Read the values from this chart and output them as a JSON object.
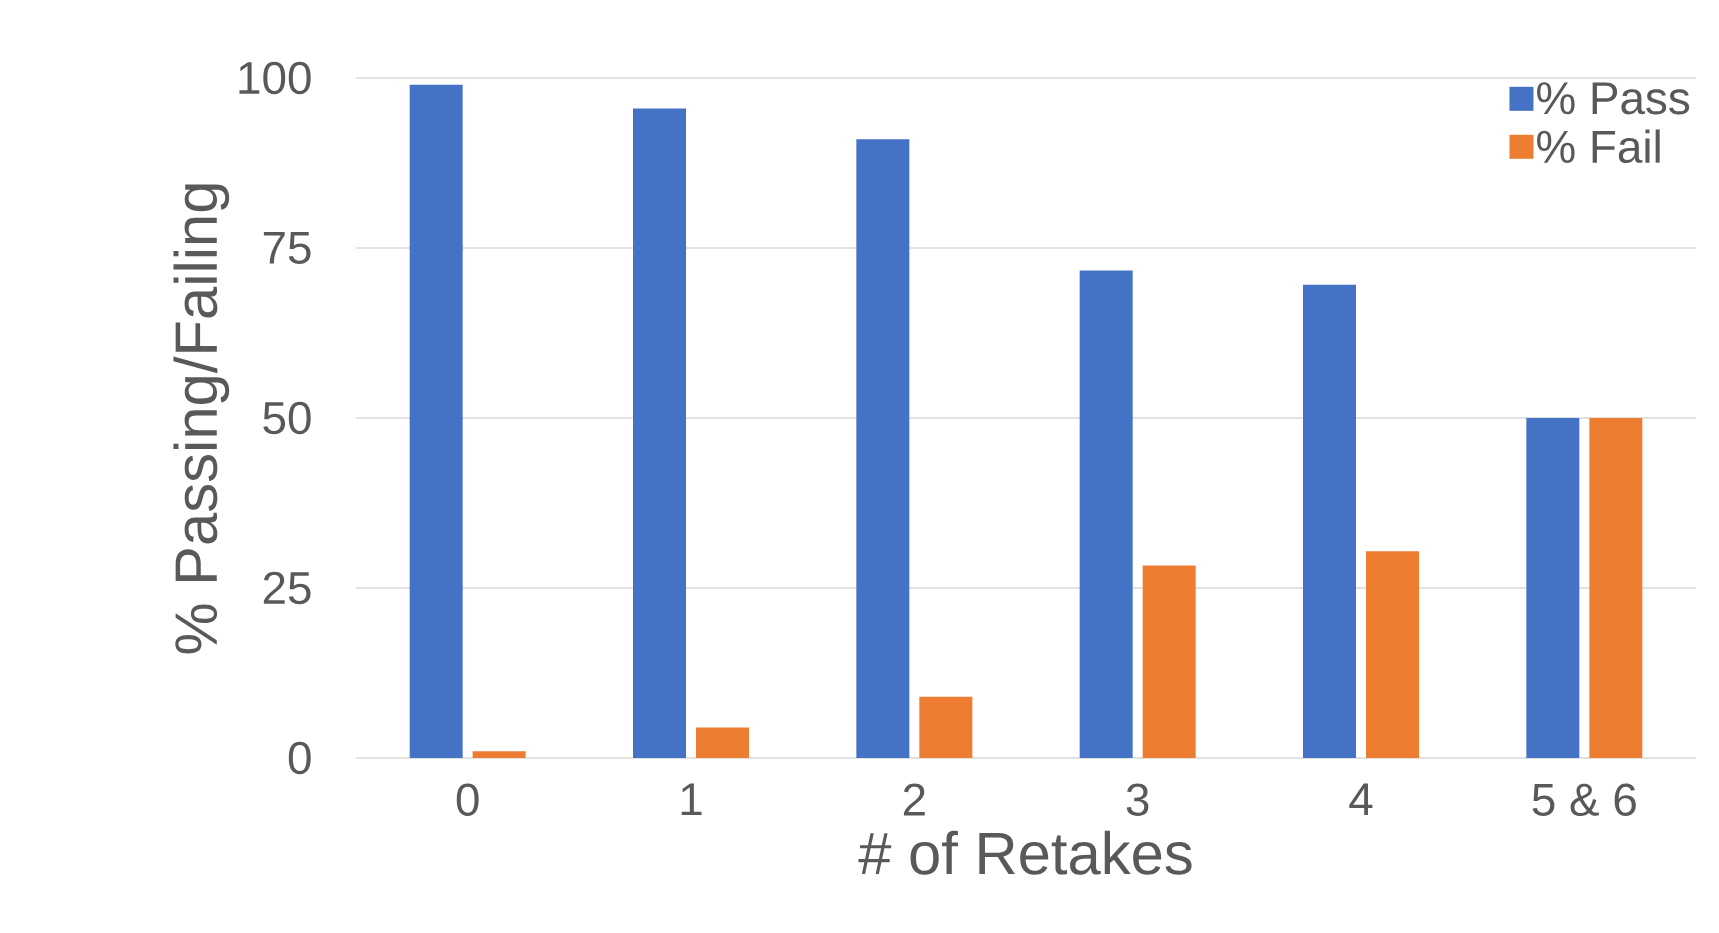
{
  "chart_data": {
    "type": "bar",
    "xlabel": "# of Retakes",
    "ylabel": "% Passing/Failing",
    "categories": [
      "0",
      "1",
      "2",
      "3",
      "4",
      "5 & 6"
    ],
    "series": [
      {
        "name": "% Pass",
        "color": "#4472c4",
        "values": [
          99,
          95.5,
          91,
          71.7,
          69.6,
          50
        ]
      },
      {
        "name": "% Fail",
        "color": "#ed7d31",
        "values": [
          1,
          4.5,
          9,
          28.3,
          30.4,
          50
        ]
      }
    ],
    "ylim": [
      0,
      100
    ],
    "yticks": [
      0,
      25,
      50,
      75,
      100
    ],
    "grid": "y",
    "legend": "top right"
  }
}
